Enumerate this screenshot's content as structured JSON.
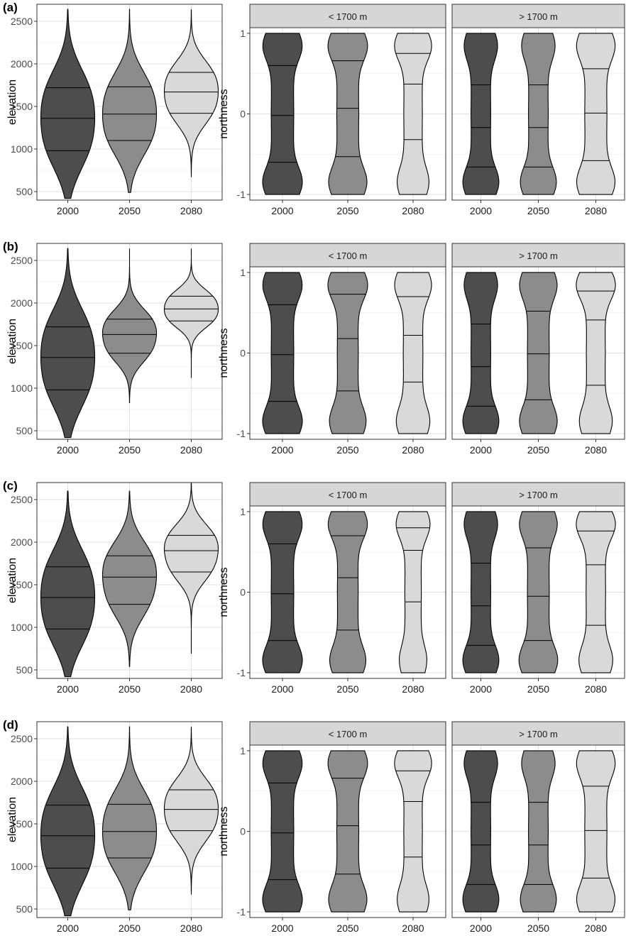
{
  "colors": {
    "2000": "#4d4d4d",
    "2050": "#8c8c8c",
    "2080": "#d9d9d9",
    "outline": "#000000",
    "grid": "#e0e0e0",
    "strip": "#d6d6d6"
  },
  "chart_data": [
    {
      "panel_label": "(a)",
      "elevation": {
        "type": "violin",
        "ylabel": "elevation",
        "categories": [
          "2000",
          "2050",
          "2080"
        ],
        "ylim": [
          400,
          2700
        ],
        "yticks": [
          "500",
          "1000",
          "1500",
          "2000",
          "2500"
        ],
        "violins": [
          {
            "category": "2000",
            "min": 420,
            "max": 2640,
            "quantiles": [
              980,
              1360,
              1720
            ]
          },
          {
            "category": "2050",
            "min": 490,
            "max": 2640,
            "quantiles": [
              1100,
              1410,
              1730
            ]
          },
          {
            "category": "2080",
            "min": 670,
            "max": 2640,
            "quantiles": [
              1420,
              1670,
              1900
            ]
          }
        ]
      },
      "northness": {
        "type": "violin",
        "ylabel": "northness",
        "categories": [
          "2000",
          "2050",
          "2080"
        ],
        "ylim": [
          -1.07,
          1.07
        ],
        "yticks": [
          "-1",
          "0",
          "1"
        ],
        "facets": [
          {
            "strip": "< 1700 m",
            "violins": [
              {
                "category": "2000",
                "quantiles": [
                  -0.6,
                  -0.02,
                  0.6
                ]
              },
              {
                "category": "2050",
                "quantiles": [
                  -0.53,
                  0.07,
                  0.66
                ]
              },
              {
                "category": "2080",
                "quantiles": [
                  -0.32,
                  0.37,
                  0.75
                ]
              }
            ]
          },
          {
            "strip": "> 1700 m",
            "violins": [
              {
                "category": "2000",
                "quantiles": [
                  -0.66,
                  -0.17,
                  0.36
                ]
              },
              {
                "category": "2050",
                "quantiles": [
                  -0.66,
                  -0.17,
                  0.36
                ]
              },
              {
                "category": "2080",
                "quantiles": [
                  -0.58,
                  0.01,
                  0.56
                ]
              }
            ]
          }
        ]
      }
    },
    {
      "panel_label": "(b)",
      "elevation": {
        "type": "violin",
        "ylabel": "elevation",
        "categories": [
          "2000",
          "2050",
          "2080"
        ],
        "ylim": [
          400,
          2700
        ],
        "yticks": [
          "500",
          "1000",
          "1500",
          "2000",
          "2500"
        ],
        "violins": [
          {
            "category": "2000",
            "min": 420,
            "max": 2640,
            "quantiles": [
              980,
              1360,
              1720
            ]
          },
          {
            "category": "2050",
            "min": 830,
            "max": 2640,
            "quantiles": [
              1410,
              1630,
              1810
            ]
          },
          {
            "category": "2080",
            "min": 1120,
            "max": 2640,
            "quantiles": [
              1790,
              1930,
              2080
            ]
          }
        ]
      },
      "northness": {
        "type": "violin",
        "ylabel": "northness",
        "categories": [
          "2000",
          "2050",
          "2080"
        ],
        "ylim": [
          -1.07,
          1.07
        ],
        "yticks": [
          "-1",
          "0",
          "1"
        ],
        "facets": [
          {
            "strip": "< 1700 m",
            "violins": [
              {
                "category": "2000",
                "quantiles": [
                  -0.6,
                  -0.02,
                  0.6
                ]
              },
              {
                "category": "2050",
                "quantiles": [
                  -0.47,
                  0.18,
                  0.73
                ]
              },
              {
                "category": "2080",
                "quantiles": [
                  -0.36,
                  0.22,
                  0.7
                ]
              }
            ]
          },
          {
            "strip": "> 1700 m",
            "violins": [
              {
                "category": "2000",
                "quantiles": [
                  -0.66,
                  -0.17,
                  0.36
                ]
              },
              {
                "category": "2050",
                "quantiles": [
                  -0.58,
                  -0.01,
                  0.52
                ]
              },
              {
                "category": "2080",
                "quantiles": [
                  -0.4,
                  0.41,
                  0.77
                ]
              }
            ]
          }
        ]
      }
    },
    {
      "panel_label": "(c)",
      "elevation": {
        "type": "violin",
        "ylabel": "elevation",
        "categories": [
          "2000",
          "2050",
          "2080"
        ],
        "ylim": [
          400,
          2700
        ],
        "yticks": [
          "500",
          "1000",
          "1500",
          "2000",
          "2500"
        ],
        "violins": [
          {
            "category": "2000",
            "min": 420,
            "max": 2600,
            "quantiles": [
              980,
              1350,
              1710
            ]
          },
          {
            "category": "2050",
            "min": 540,
            "max": 2600,
            "quantiles": [
              1270,
              1590,
              1840
            ]
          },
          {
            "category": "2080",
            "min": 690,
            "max": 2700,
            "quantiles": [
              1650,
              1900,
              2080
            ]
          }
        ]
      },
      "northness": {
        "type": "violin",
        "ylabel": "northness",
        "categories": [
          "2000",
          "2050",
          "2080"
        ],
        "ylim": [
          -1.07,
          1.07
        ],
        "yticks": [
          "-1",
          "0",
          "1"
        ],
        "facets": [
          {
            "strip": "< 1700 m",
            "violins": [
              {
                "category": "2000",
                "quantiles": [
                  -0.6,
                  -0.02,
                  0.6
                ]
              },
              {
                "category": "2050",
                "quantiles": [
                  -0.47,
                  0.18,
                  0.7
                ]
              },
              {
                "category": "2080",
                "quantiles": [
                  -0.12,
                  0.52,
                  0.8
                ]
              }
            ]
          },
          {
            "strip": "> 1700 m",
            "violins": [
              {
                "category": "2000",
                "quantiles": [
                  -0.66,
                  -0.17,
                  0.36
                ]
              },
              {
                "category": "2050",
                "quantiles": [
                  -0.6,
                  -0.05,
                  0.55
                ]
              },
              {
                "category": "2080",
                "quantiles": [
                  -0.41,
                  0.34,
                  0.76
                ]
              }
            ]
          }
        ]
      }
    },
    {
      "panel_label": "(d)",
      "elevation": {
        "type": "violin",
        "ylabel": "elevation",
        "categories": [
          "2000",
          "2050",
          "2080"
        ],
        "ylim": [
          400,
          2700
        ],
        "yticks": [
          "500",
          "1000",
          "1500",
          "2000",
          "2500"
        ],
        "violins": [
          {
            "category": "2000",
            "min": 420,
            "max": 2640,
            "quantiles": [
              980,
              1360,
              1720
            ]
          },
          {
            "category": "2050",
            "min": 490,
            "max": 2640,
            "quantiles": [
              1100,
              1410,
              1730
            ]
          },
          {
            "category": "2080",
            "min": 670,
            "max": 2640,
            "quantiles": [
              1420,
              1670,
              1900
            ]
          }
        ]
      },
      "northness": {
        "type": "violin",
        "ylabel": "northness",
        "categories": [
          "2000",
          "2050",
          "2080"
        ],
        "ylim": [
          -1.07,
          1.07
        ],
        "yticks": [
          "-1",
          "0",
          "1"
        ],
        "facets": [
          {
            "strip": "< 1700 m",
            "violins": [
              {
                "category": "2000",
                "quantiles": [
                  -0.6,
                  -0.02,
                  0.6
                ]
              },
              {
                "category": "2050",
                "quantiles": [
                  -0.53,
                  0.07,
                  0.66
                ]
              },
              {
                "category": "2080",
                "quantiles": [
                  -0.32,
                  0.37,
                  0.75
                ]
              }
            ]
          },
          {
            "strip": "> 1700 m",
            "violins": [
              {
                "category": "2000",
                "quantiles": [
                  -0.66,
                  -0.17,
                  0.36
                ]
              },
              {
                "category": "2050",
                "quantiles": [
                  -0.66,
                  -0.17,
                  0.36
                ]
              },
              {
                "category": "2080",
                "quantiles": [
                  -0.58,
                  0.01,
                  0.56
                ]
              }
            ]
          }
        ]
      }
    }
  ]
}
